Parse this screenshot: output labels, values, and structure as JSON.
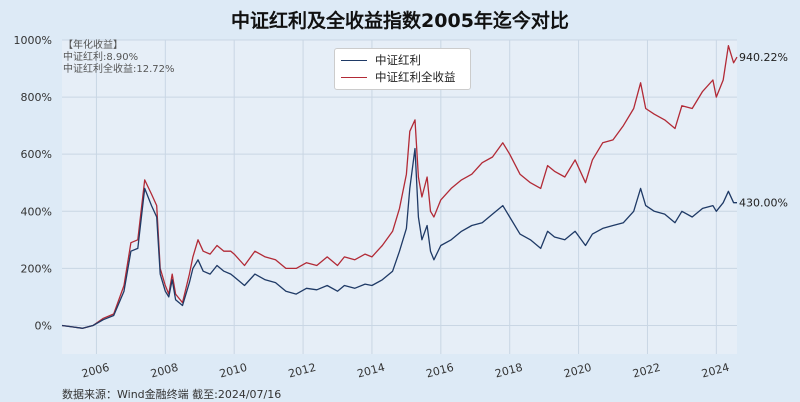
{
  "chart_data": {
    "type": "line",
    "title": "中证红利及全收益指数2005年迄今对比",
    "annotation": {
      "header": "【年化收益】",
      "lines": [
        "中证红利:8.90%",
        "中证红利全收益:12.72%"
      ]
    },
    "ylim": [
      -100,
      1000
    ],
    "yticks": [
      0,
      200,
      400,
      600,
      800,
      1000
    ],
    "ytick_labels": [
      "0%",
      "200%",
      "400%",
      "600%",
      "800%",
      "1000%"
    ],
    "xlim": [
      2005.0,
      2024.6
    ],
    "xticks": [
      2006,
      2008,
      2010,
      2012,
      2014,
      2016,
      2018,
      2020,
      2022,
      2024
    ],
    "xtick_labels": [
      "2006",
      "2008",
      "2010",
      "2012",
      "2014",
      "2016",
      "2018",
      "2020",
      "2022",
      "2024"
    ],
    "grid": true,
    "legend_position": "top-center",
    "series": [
      {
        "name": "中证红利",
        "color": "#1f3a66",
        "end_label": "430.00%",
        "x": [
          2005.0,
          2005.3,
          2005.6,
          2005.9,
          2006.2,
          2006.5,
          2006.8,
          2007.0,
          2007.2,
          2007.4,
          2007.6,
          2007.75,
          2007.85,
          2008.0,
          2008.1,
          2008.2,
          2008.3,
          2008.5,
          2008.7,
          2008.8,
          2008.95,
          2009.1,
          2009.3,
          2009.5,
          2009.7,
          2009.9,
          2010.0,
          2010.3,
          2010.6,
          2010.9,
          2011.2,
          2011.5,
          2011.8,
          2012.1,
          2012.4,
          2012.7,
          2013.0,
          2013.2,
          2013.5,
          2013.8,
          2014.0,
          2014.3,
          2014.6,
          2014.8,
          2015.0,
          2015.1,
          2015.25,
          2015.35,
          2015.45,
          2015.6,
          2015.7,
          2015.8,
          2016.0,
          2016.3,
          2016.6,
          2016.9,
          2017.2,
          2017.5,
          2017.8,
          2018.0,
          2018.3,
          2018.6,
          2018.9,
          2019.1,
          2019.3,
          2019.6,
          2019.9,
          2020.2,
          2020.4,
          2020.7,
          2021.0,
          2021.3,
          2021.6,
          2021.8,
          2021.95,
          2022.2,
          2022.5,
          2022.8,
          2023.0,
          2023.3,
          2023.6,
          2023.9,
          2024.0,
          2024.2,
          2024.35,
          2024.5,
          2024.6
        ],
        "y": [
          0,
          -5,
          -10,
          0,
          20,
          35,
          120,
          260,
          270,
          480,
          420,
          380,
          180,
          120,
          100,
          160,
          90,
          70,
          150,
          200,
          230,
          190,
          180,
          210,
          190,
          180,
          170,
          140,
          180,
          160,
          150,
          120,
          110,
          130,
          125,
          140,
          120,
          140,
          130,
          145,
          140,
          160,
          190,
          260,
          340,
          480,
          620,
          380,
          300,
          350,
          260,
          230,
          280,
          300,
          330,
          350,
          360,
          390,
          420,
          380,
          320,
          300,
          270,
          330,
          310,
          300,
          330,
          280,
          320,
          340,
          350,
          360,
          400,
          480,
          420,
          400,
          390,
          360,
          400,
          380,
          410,
          420,
          400,
          430,
          470,
          430,
          430
        ]
      },
      {
        "name": "中证红利全收益",
        "color": "#b22a36",
        "end_label": "940.22%",
        "x": [
          2005.0,
          2005.3,
          2005.6,
          2005.9,
          2006.2,
          2006.5,
          2006.8,
          2007.0,
          2007.2,
          2007.4,
          2007.6,
          2007.75,
          2007.85,
          2008.0,
          2008.1,
          2008.2,
          2008.3,
          2008.5,
          2008.7,
          2008.8,
          2008.95,
          2009.1,
          2009.3,
          2009.5,
          2009.7,
          2009.9,
          2010.0,
          2010.3,
          2010.6,
          2010.9,
          2011.2,
          2011.5,
          2011.8,
          2012.1,
          2012.4,
          2012.7,
          2013.0,
          2013.2,
          2013.5,
          2013.8,
          2014.0,
          2014.3,
          2014.6,
          2014.8,
          2015.0,
          2015.1,
          2015.25,
          2015.35,
          2015.45,
          2015.6,
          2015.7,
          2015.8,
          2016.0,
          2016.3,
          2016.6,
          2016.9,
          2017.2,
          2017.5,
          2017.8,
          2018.0,
          2018.3,
          2018.6,
          2018.9,
          2019.1,
          2019.3,
          2019.6,
          2019.9,
          2020.2,
          2020.4,
          2020.7,
          2021.0,
          2021.3,
          2021.6,
          2021.8,
          2021.95,
          2022.2,
          2022.5,
          2022.8,
          2023.0,
          2023.3,
          2023.6,
          2023.9,
          2024.0,
          2024.2,
          2024.35,
          2024.5,
          2024.6
        ],
        "y": [
          0,
          -5,
          -10,
          0,
          25,
          40,
          140,
          290,
          300,
          510,
          460,
          420,
          200,
          140,
          110,
          180,
          110,
          80,
          180,
          240,
          300,
          260,
          250,
          280,
          260,
          260,
          250,
          210,
          260,
          240,
          230,
          200,
          200,
          220,
          210,
          240,
          210,
          240,
          230,
          250,
          240,
          280,
          330,
          410,
          530,
          680,
          720,
          520,
          450,
          520,
          400,
          380,
          440,
          480,
          510,
          530,
          570,
          590,
          640,
          600,
          530,
          500,
          480,
          560,
          540,
          520,
          580,
          500,
          580,
          640,
          650,
          700,
          760,
          850,
          760,
          740,
          720,
          690,
          770,
          760,
          820,
          860,
          800,
          860,
          980,
          920,
          940
        ]
      }
    ]
  },
  "source_text": "数据来源：Wind金融终端 截至:2024/07/16"
}
